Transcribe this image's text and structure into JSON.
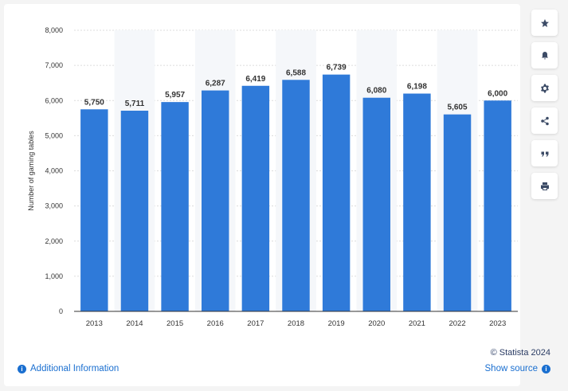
{
  "chart_data": {
    "type": "bar",
    "categories": [
      "2013",
      "2014",
      "2015",
      "2016",
      "2017",
      "2018",
      "2019",
      "2020",
      "2021",
      "2022",
      "2023"
    ],
    "values": [
      5750,
      5711,
      5957,
      6287,
      6419,
      6588,
      6739,
      6080,
      6198,
      5605,
      6000
    ],
    "value_labels": [
      "5,750",
      "5,711",
      "5,957",
      "6,287",
      "6,419",
      "6,588",
      "6,739",
      "6,080",
      "6,198",
      "5,605",
      "6,000"
    ],
    "ylabel": "Number of gaming tables",
    "ylim": [
      0,
      8000
    ],
    "yticks": [
      0,
      1000,
      2000,
      3000,
      4000,
      5000,
      6000,
      7000,
      8000
    ],
    "ytick_labels": [
      "0",
      "1,000",
      "2,000",
      "3,000",
      "4,000",
      "5,000",
      "6,000",
      "7,000",
      "8,000"
    ],
    "bar_color": "#2f7ad9",
    "grid": true
  },
  "toolbar": {
    "icons": [
      "star-icon",
      "bell-icon",
      "gear-icon",
      "share-icon",
      "quote-icon",
      "print-icon"
    ]
  },
  "footer": {
    "credit": "© Statista 2024",
    "additional_info": "Additional Information",
    "show_source": "Show source"
  }
}
